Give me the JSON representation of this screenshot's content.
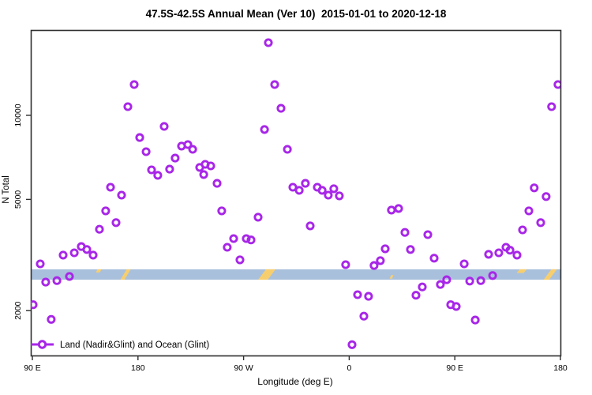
{
  "chart_data": {
    "type": "scatter",
    "title": "47.5S-42.5S Annual Mean (Ver 10)  2015-01-01 to 2020-12-18",
    "xlabel": "Longitude (deg E)",
    "ylabel": "N Total",
    "y_scale": "log",
    "ylim": [
      1380,
      20200
    ],
    "x_axis_span_deg": 450,
    "x_ticks": [
      {
        "deg": 0,
        "label": "90 E"
      },
      {
        "deg": 90,
        "label": "180"
      },
      {
        "deg": 180,
        "label": "90 W"
      },
      {
        "deg": 270,
        "label": "0"
      },
      {
        "deg": 360,
        "label": "90 E"
      },
      {
        "deg": 450,
        "label": "180"
      }
    ],
    "y_ticks": [
      {
        "value": 2000,
        "label": "2000"
      },
      {
        "value": 5000,
        "label": "5000"
      },
      {
        "value": 10000,
        "label": "10000"
      }
    ],
    "grid": false,
    "legend_position": "bottom-left",
    "marker_color": "#A826E8",
    "reference_band": {
      "color": "#A9C0DC",
      "value_from": 2580,
      "value_to": 2810
    },
    "band_marks": {
      "color": "#F7CE6E",
      "items": [
        {
          "deg": 56.5,
          "w_deg": 3.4,
          "fy0": 0,
          "fy1": 0.3,
          "slant": 1
        },
        {
          "deg": 79.4,
          "w_deg": 3.4,
          "fy0": 0,
          "fy1": 1,
          "slant": 4
        },
        {
          "deg": 199.8,
          "w_deg": 8.1,
          "fy0": 0,
          "fy1": 1,
          "slant": 5
        },
        {
          "deg": 306.1,
          "w_deg": 2.0,
          "fy0": 0.55,
          "fy1": 0.9,
          "slant": 1
        },
        {
          "deg": 417.0,
          "w_deg": 6.0,
          "fy0": 0,
          "fy1": 0.35,
          "slant": 2
        },
        {
          "deg": 441.3,
          "w_deg": 4.7,
          "fy0": 0,
          "fy1": 1,
          "slant": 5
        }
      ]
    },
    "series": [
      {
        "name": "Land (Nadir&Glint) and Ocean (Glint)",
        "marker": "open-circle",
        "color": "#A826E8",
        "points": [
          [
            86.8,
            12890
          ],
          [
            81.4,
            10740
          ],
          [
            112.3,
            9130
          ],
          [
            91.5,
            8330
          ],
          [
            96.9,
            7410
          ],
          [
            127.1,
            7760
          ],
          [
            132.5,
            7860
          ],
          [
            136.6,
            7560
          ],
          [
            121.7,
            7030
          ],
          [
            101.6,
            6380
          ],
          [
            106.9,
            6100
          ],
          [
            117.0,
            6420
          ],
          [
            142.6,
            6510
          ],
          [
            147.3,
            6680
          ],
          [
            146.0,
            6140
          ],
          [
            66.6,
            5530
          ],
          [
            76.0,
            5180
          ],
          [
            201.1,
            18200
          ],
          [
            206.5,
            12890
          ],
          [
            211.9,
            10600
          ],
          [
            197.8,
            8900
          ],
          [
            217.3,
            7560
          ],
          [
            152.0,
            6590
          ],
          [
            157.4,
            5710
          ],
          [
            222.0,
            5530
          ],
          [
            227.4,
            5390
          ],
          [
            232.7,
            5710
          ],
          [
            242.8,
            5530
          ],
          [
            246.9,
            5390
          ],
          [
            252.2,
            5180
          ],
          [
            256.9,
            5460
          ],
          [
            261.6,
            5150
          ],
          [
            447.9,
            12890
          ],
          [
            442.5,
            10740
          ],
          [
            427.7,
            5500
          ],
          [
            437.8,
            5120
          ],
          [
            62.5,
            4550
          ],
          [
            71.3,
            4130
          ],
          [
            57.2,
            3910
          ],
          [
            41.7,
            3390
          ],
          [
            26.2,
            3160
          ],
          [
            35.7,
            3220
          ],
          [
            46.4,
            3310
          ],
          [
            51.8,
            3160
          ],
          [
            6.7,
            2940
          ],
          [
            31.6,
            2650
          ],
          [
            11.4,
            2530
          ],
          [
            20.9,
            2560
          ],
          [
            0.7,
            2100
          ],
          [
            16.1,
            1860
          ],
          [
            161.4,
            4550
          ],
          [
            192.4,
            4320
          ],
          [
            236.8,
            4020
          ],
          [
            171.5,
            3620
          ],
          [
            182.3,
            3620
          ],
          [
            186.3,
            3580
          ],
          [
            166.1,
            3370
          ],
          [
            176.9,
            3040
          ],
          [
            267.0,
            2920
          ],
          [
            291.2,
            2900
          ],
          [
            296.6,
            3020
          ],
          [
            300.7,
            3330
          ],
          [
            277.1,
            2280
          ],
          [
            286.5,
            2250
          ],
          [
            282.5,
            1910
          ],
          [
            272.4,
            1510
          ],
          [
            306.0,
            4580
          ],
          [
            312.1,
            4640
          ],
          [
            317.5,
            3810
          ],
          [
            337.0,
            3740
          ],
          [
            322.2,
            3310
          ],
          [
            342.4,
            3080
          ],
          [
            368.0,
            2940
          ],
          [
            388.8,
            3180
          ],
          [
            397.5,
            3220
          ],
          [
            403.6,
            3370
          ],
          [
            407.0,
            3290
          ],
          [
            413.0,
            3160
          ],
          [
            423.1,
            4550
          ],
          [
            433.2,
            4130
          ],
          [
            417.7,
            3890
          ],
          [
            353.1,
            2580
          ],
          [
            347.7,
            2480
          ],
          [
            332.3,
            2430
          ],
          [
            326.9,
            2270
          ],
          [
            372.7,
            2550
          ],
          [
            382.1,
            2560
          ],
          [
            392.2,
            2670
          ],
          [
            356.5,
            2100
          ],
          [
            361.2,
            2070
          ],
          [
            377.4,
            1850
          ]
        ]
      }
    ]
  }
}
